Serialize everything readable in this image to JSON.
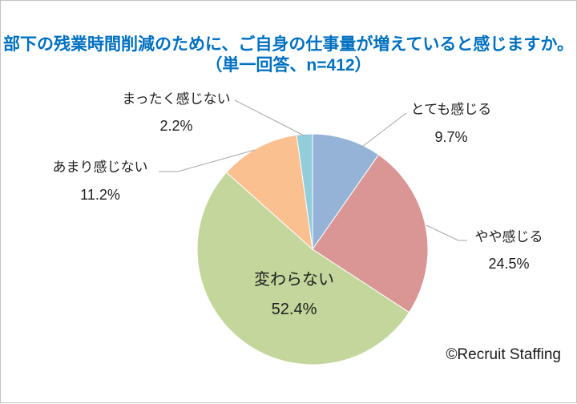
{
  "title": {
    "line1": "部下の残業時間削減のために、ご自身の仕事量が増えていると感じますか。",
    "line2": "（単一回答、n=412）"
  },
  "watermark": "©Recruit Staffing",
  "chart_data": {
    "type": "pie",
    "title": "部下の残業時間削減のために、ご自身の仕事量が増えていると感じますか。",
    "subtitle": "（単一回答、n=412）",
    "sample_size": 412,
    "categories": [
      "とても感じる",
      "やや感じる",
      "変わらない",
      "あまり感じない",
      "まったく感じない"
    ],
    "values": [
      9.7,
      24.5,
      52.4,
      11.2,
      2.2
    ],
    "unit": "%",
    "colors": [
      "#95B3D7",
      "#D99694",
      "#C3D69B",
      "#FAC090",
      "#92CDDC"
    ],
    "start_angle_deg": 0,
    "direction": "clockwise",
    "legend": "none",
    "label_style": "category-name-plus-percent",
    "label_placement": [
      "outside-right",
      "outside-right",
      "inside",
      "outside-left",
      "outside-left"
    ],
    "leader_line_color": "#A6A6A6",
    "title_color": "#0070C0"
  }
}
